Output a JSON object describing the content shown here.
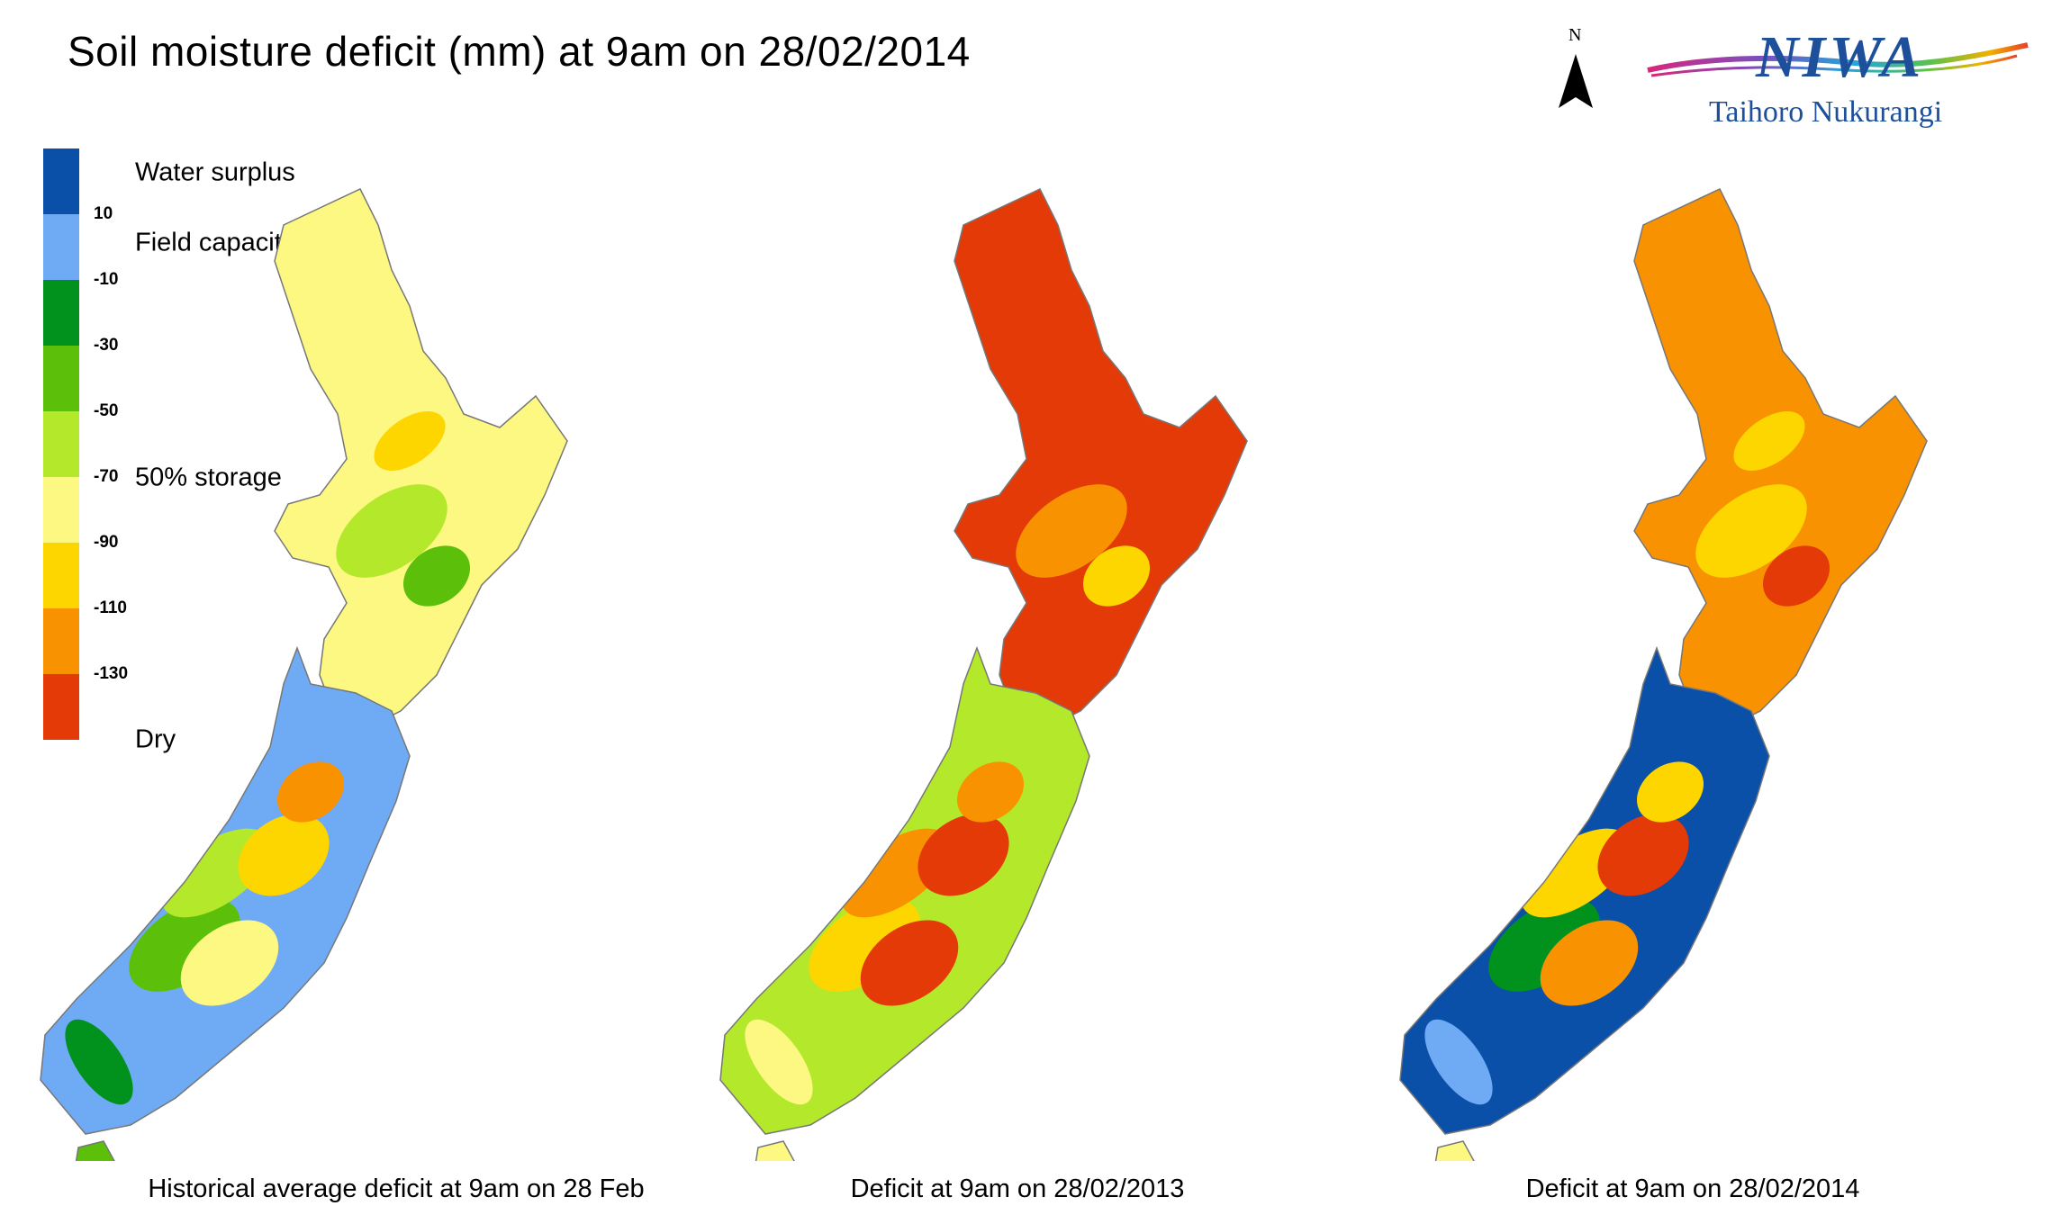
{
  "title": "Soil moisture deficit (mm) at  9am on 28/02/2014",
  "north_arrow": {
    "label": "N",
    "icon": "north-arrow-icon"
  },
  "logo": {
    "brand": "NIWA",
    "subtitle": "Taihoro Nukurangi"
  },
  "legend": {
    "classes": [
      {
        "color": "#0a4fa8",
        "tick": "10"
      },
      {
        "color": "#6faaf5",
        "tick": "-10"
      },
      {
        "color": "#00921c",
        "tick": "-30"
      },
      {
        "color": "#5cbf0a",
        "tick": "-50"
      },
      {
        "color": "#b4e82a",
        "tick": "-70"
      },
      {
        "color": "#fdf882",
        "tick": "-90"
      },
      {
        "color": "#fdd600",
        "tick": "-110"
      },
      {
        "color": "#f99200",
        "tick": "-130"
      },
      {
        "color": "#e43a08",
        "tick": ""
      }
    ],
    "labels": {
      "water_surplus": "Water surplus",
      "field_capacity": "Field capacity",
      "storage": "50% storage",
      "dry": "Dry"
    }
  },
  "maps": [
    {
      "caption": "Historical average deficit at  9am on 28 Feb",
      "north_island": [
        "#fdf882",
        "#b4e82a",
        "#5cbf0a",
        "#fdd600"
      ],
      "south_island": [
        "#6faaf5",
        "#00921c",
        "#5cbf0a",
        "#b4e82a",
        "#fdf882",
        "#fdd600",
        "#f99200"
      ],
      "stewart": "#5cbf0a"
    },
    {
      "caption": "Deficit at  9am on 28/02/2013",
      "north_island": [
        "#e43a08",
        "#f99200",
        "#fdd600",
        "#e43a08"
      ],
      "south_island": [
        "#b4e82a",
        "#fdf882",
        "#fdd600",
        "#f99200",
        "#e43a08",
        "#e43a08",
        "#f99200"
      ],
      "stewart": "#fdf882"
    },
    {
      "caption": "Deficit at  9am on 28/02/2014",
      "north_island": [
        "#f99200",
        "#fdd600",
        "#e43a08",
        "#fdd600"
      ],
      "south_island": [
        "#0a4fa8",
        "#6faaf5",
        "#00921c",
        "#fdd600",
        "#f99200",
        "#e43a08",
        "#fdd600"
      ],
      "stewart": "#fdf882"
    }
  ]
}
